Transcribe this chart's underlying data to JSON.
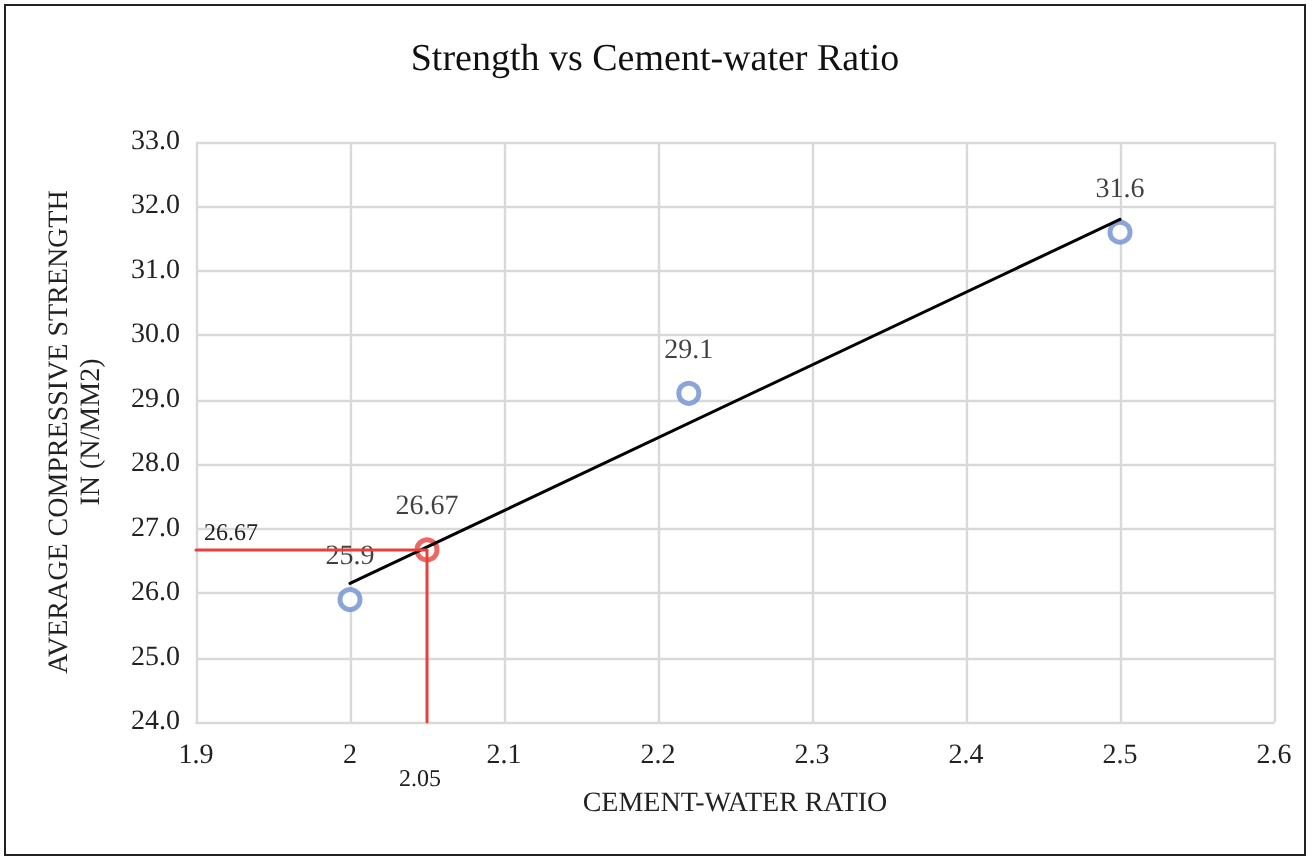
{
  "chart_data": {
    "type": "scatter",
    "title": "Strength vs Cement-water Ratio",
    "xlabel": "CEMENT-WATER RATIO",
    "ylabel": "AVERAGE COMPRESSIVE STRENGTH\nIN (N/MM2)",
    "series": [
      {
        "color": "#6f8fd0",
        "x": [
          2,
          2.22,
          2.5
        ],
        "values": [
          25.9,
          29.1,
          31.6
        ],
        "value_labels": [
          "25.9",
          "29.1",
          "31.6"
        ]
      },
      {
        "color": "#e8413c",
        "x": [
          2.05
        ],
        "values": [
          26.67
        ],
        "value_labels": [
          "26.67"
        ]
      },
      {
        "type": "line",
        "color": "#000000",
        "marker": "none",
        "x": [
          2,
          2.5
        ],
        "values": [
          26.15,
          31.8
        ]
      },
      {
        "type": "line",
        "color": "#e8413c",
        "marker": "none",
        "x": [
          1.9,
          2.05,
          2.05
        ],
        "values": [
          26.67,
          26.67,
          24
        ]
      }
    ],
    "annotations": [
      {
        "text": "26.67",
        "x": 1.9,
        "y": 26.67
      },
      {
        "text": "2.05",
        "x": 2.05,
        "y": 24
      }
    ],
    "xlim": [
      1.9,
      2.6
    ],
    "xticks": [
      1.9,
      2,
      2.1,
      2.2,
      2.3,
      2.4,
      2.5,
      2.6
    ],
    "ylim": [
      24,
      33
    ],
    "yticks": [
      {
        "value": 24,
        "label": "24.0"
      },
      {
        "value": 25,
        "label": "25.0"
      },
      {
        "value": 26,
        "label": "26.0"
      },
      {
        "value": 27,
        "label": "27.0"
      },
      {
        "value": 28,
        "label": "28.0"
      },
      {
        "value": 29,
        "label": "29.0"
      },
      {
        "value": 30,
        "label": "30.0"
      },
      {
        "value": 31,
        "label": "31.0"
      },
      {
        "value": 32,
        "label": "32.0"
      },
      {
        "value": 33,
        "label": "33.0"
      }
    ],
    "grid": true,
    "marker": "circle"
  }
}
